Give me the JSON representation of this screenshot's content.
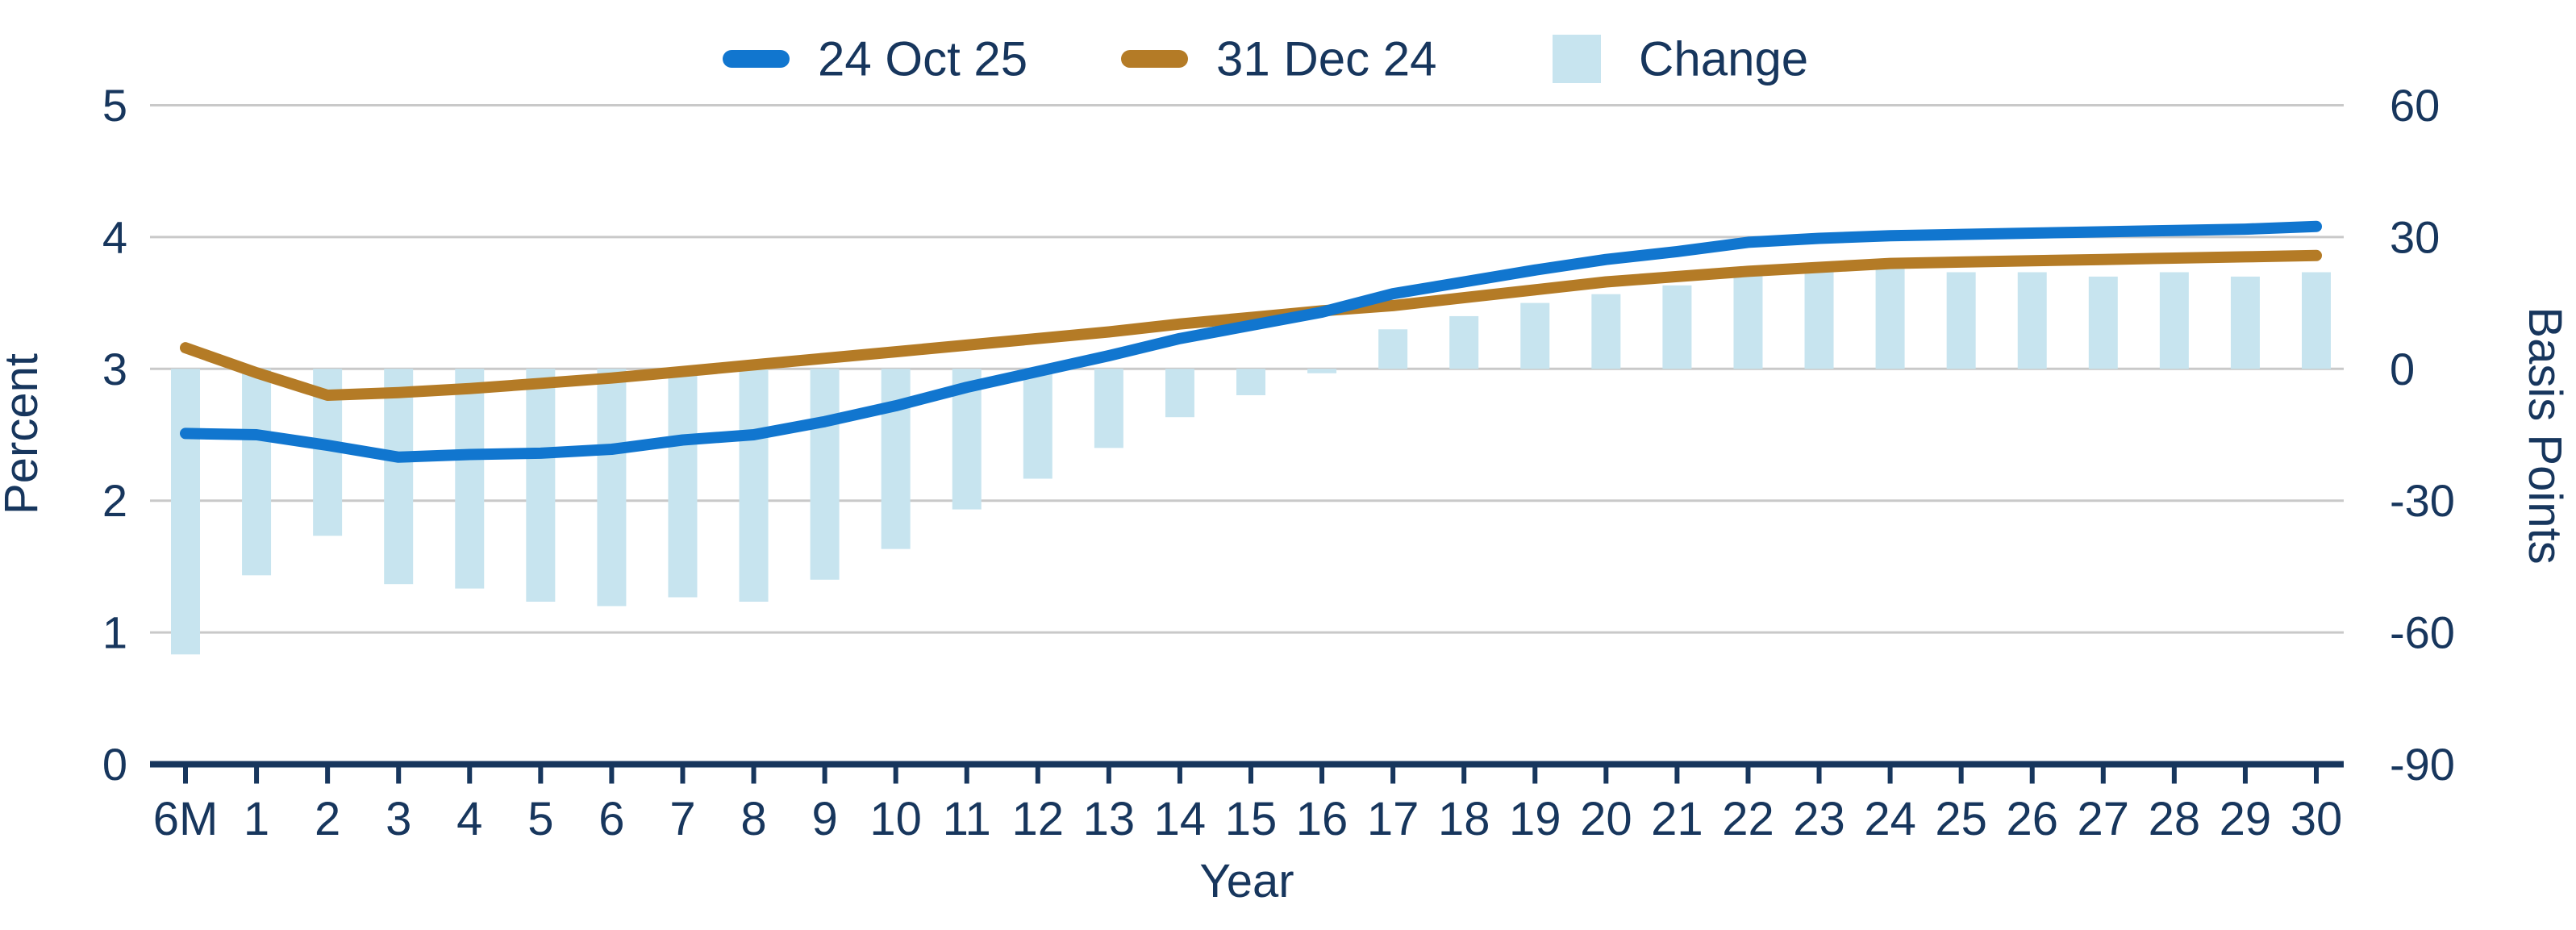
{
  "chart_data": {
    "type": "combo",
    "title": "",
    "xlabel": "Year",
    "categories": [
      "6M",
      "1",
      "2",
      "3",
      "4",
      "5",
      "6",
      "7",
      "8",
      "9",
      "10",
      "11",
      "12",
      "13",
      "14",
      "15",
      "16",
      "17",
      "18",
      "19",
      "20",
      "21",
      "22",
      "23",
      "24",
      "25",
      "26",
      "27",
      "28",
      "29",
      "30"
    ],
    "left_axis": {
      "label": "Percent",
      "ticks": [
        5,
        4,
        3,
        2,
        1,
        0
      ],
      "range": [
        0,
        5
      ]
    },
    "right_axis": {
      "label": "Basis Points",
      "ticks": [
        60,
        30,
        0,
        -30,
        -60,
        -90
      ],
      "range": [
        -90,
        60
      ]
    },
    "legend_position": "top",
    "grid": true,
    "series": [
      {
        "name": "24 Oct 25",
        "type": "line",
        "axis": "left",
        "color": "#1176cf",
        "values": [
          2.51,
          2.5,
          2.42,
          2.33,
          2.35,
          2.36,
          2.39,
          2.46,
          2.5,
          2.6,
          2.72,
          2.86,
          2.98,
          3.1,
          3.23,
          3.33,
          3.43,
          3.57,
          3.66,
          3.75,
          3.83,
          3.89,
          3.96,
          3.99,
          4.01,
          4.02,
          4.03,
          4.04,
          4.05,
          4.06,
          4.08
        ]
      },
      {
        "name": "31 Dec 24",
        "type": "line",
        "axis": "left",
        "color": "#b47b26",
        "values": [
          3.16,
          2.97,
          2.8,
          2.82,
          2.85,
          2.89,
          2.93,
          2.98,
          3.03,
          3.08,
          3.13,
          3.18,
          3.23,
          3.28,
          3.34,
          3.39,
          3.44,
          3.48,
          3.54,
          3.6,
          3.66,
          3.7,
          3.74,
          3.77,
          3.8,
          3.81,
          3.82,
          3.83,
          3.84,
          3.85,
          3.86
        ]
      },
      {
        "name": "Change",
        "type": "bar",
        "axis": "right",
        "color": "#c7e4ef",
        "values": [
          -65,
          -47,
          -38,
          -49,
          -50,
          -53,
          -54,
          -52,
          -53,
          -48,
          -41,
          -32,
          -25,
          -18,
          -11,
          -6,
          -1,
          9,
          12,
          15,
          17,
          19,
          23,
          23,
          24,
          22,
          22,
          21,
          22,
          21,
          22
        ]
      }
    ]
  },
  "colors": {
    "text": "#17365d",
    "gridline": "#c9c9c9",
    "axis_line": "#17365d",
    "background": "#ffffff"
  },
  "legend": {
    "item1": "24 Oct 25",
    "item2": "31 Dec 24",
    "item3": "Change"
  },
  "axis_titles": {
    "left": "Percent",
    "right": "Basis Points",
    "bottom": "Year"
  }
}
